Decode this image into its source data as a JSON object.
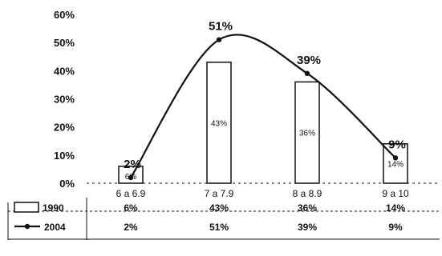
{
  "chart_data": {
    "type": "bar+line",
    "categories": [
      "6 a 6.9",
      "7 a 7.9",
      "8 a 8.9",
      "9 a 10"
    ],
    "series": [
      {
        "name": "1990",
        "type": "bar",
        "values": [
          6,
          43,
          36,
          14
        ],
        "labels": [
          "6%",
          "43%",
          "36%",
          "14%"
        ]
      },
      {
        "name": "2004",
        "type": "line",
        "values": [
          2,
          51,
          39,
          9
        ],
        "labels": [
          "2%",
          "51%",
          "39%",
          "9%"
        ]
      }
    ],
    "ylim": [
      0,
      60
    ],
    "yticks": [
      "0%",
      "10%",
      "20%",
      "30%",
      "40%",
      "50%",
      "60%"
    ],
    "data_table": true,
    "colors": {
      "bar_fill": "#ffffff",
      "stroke": "#111111"
    }
  }
}
